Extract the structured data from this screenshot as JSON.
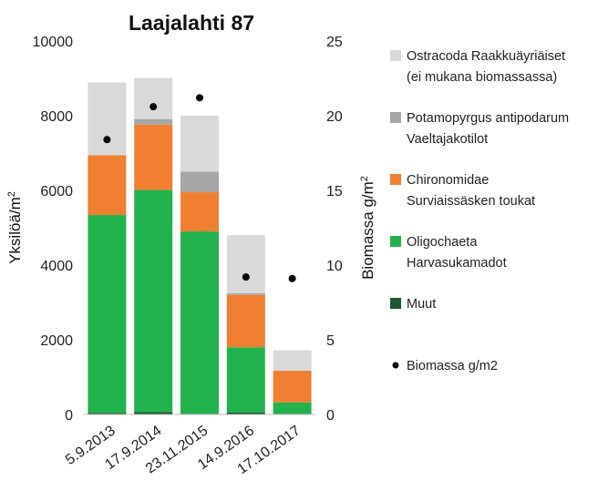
{
  "chart_data": {
    "type": "bar",
    "stacked": true,
    "title": "Laajalahti 87",
    "categories": [
      "5.9.2013",
      "17.9.2014",
      "23.11.2015",
      "14.9.2016",
      "17.10.2017"
    ],
    "ylabel_left": "Yksilöä/m",
    "ylabel_left_sup": "2",
    "ylabel_right": "Biomassa g/m",
    "ylabel_right_sup": "2",
    "ylim_left": [
      0,
      10000
    ],
    "ylim_right": [
      0,
      25
    ],
    "yticks_left": [
      "0",
      "2000",
      "4000",
      "6000",
      "8000",
      "10000"
    ],
    "yticks_right": [
      "0",
      "5",
      "10",
      "15",
      "20",
      "25"
    ],
    "series": [
      {
        "name": "Muut",
        "color": "#1e5631",
        "values": [
          40,
          60,
          20,
          50,
          20
        ]
      },
      {
        "name_lines": [
          "Oligochaeta",
          "Harvasukamadot"
        ],
        "color": "#22b24c",
        "values": [
          5300,
          5950,
          4880,
          1750,
          300
        ]
      },
      {
        "name_lines": [
          "Chironomidae",
          "Surviaissäsken toukat"
        ],
        "color": "#f07f32",
        "values": [
          1600,
          1750,
          1050,
          1400,
          850
        ]
      },
      {
        "name_lines": [
          "Potamopyrgus antipodarum",
          "Vaeltajakotilot"
        ],
        "color": "#a6a6a6",
        "values": [
          0,
          150,
          550,
          50,
          0
        ]
      },
      {
        "name_lines": [
          "Ostracoda Raakkuäyriäiset",
          "(ei mukana biomassassa)"
        ],
        "color": "#d9d9d9",
        "values": [
          1950,
          1100,
          1500,
          1550,
          550
        ]
      }
    ],
    "scatter": {
      "name": "Biomassa g/m2",
      "color": "#000000",
      "values": [
        18.4,
        20.6,
        21.2,
        9.2,
        9.1
      ]
    },
    "grid": false,
    "legend_position": "right"
  }
}
